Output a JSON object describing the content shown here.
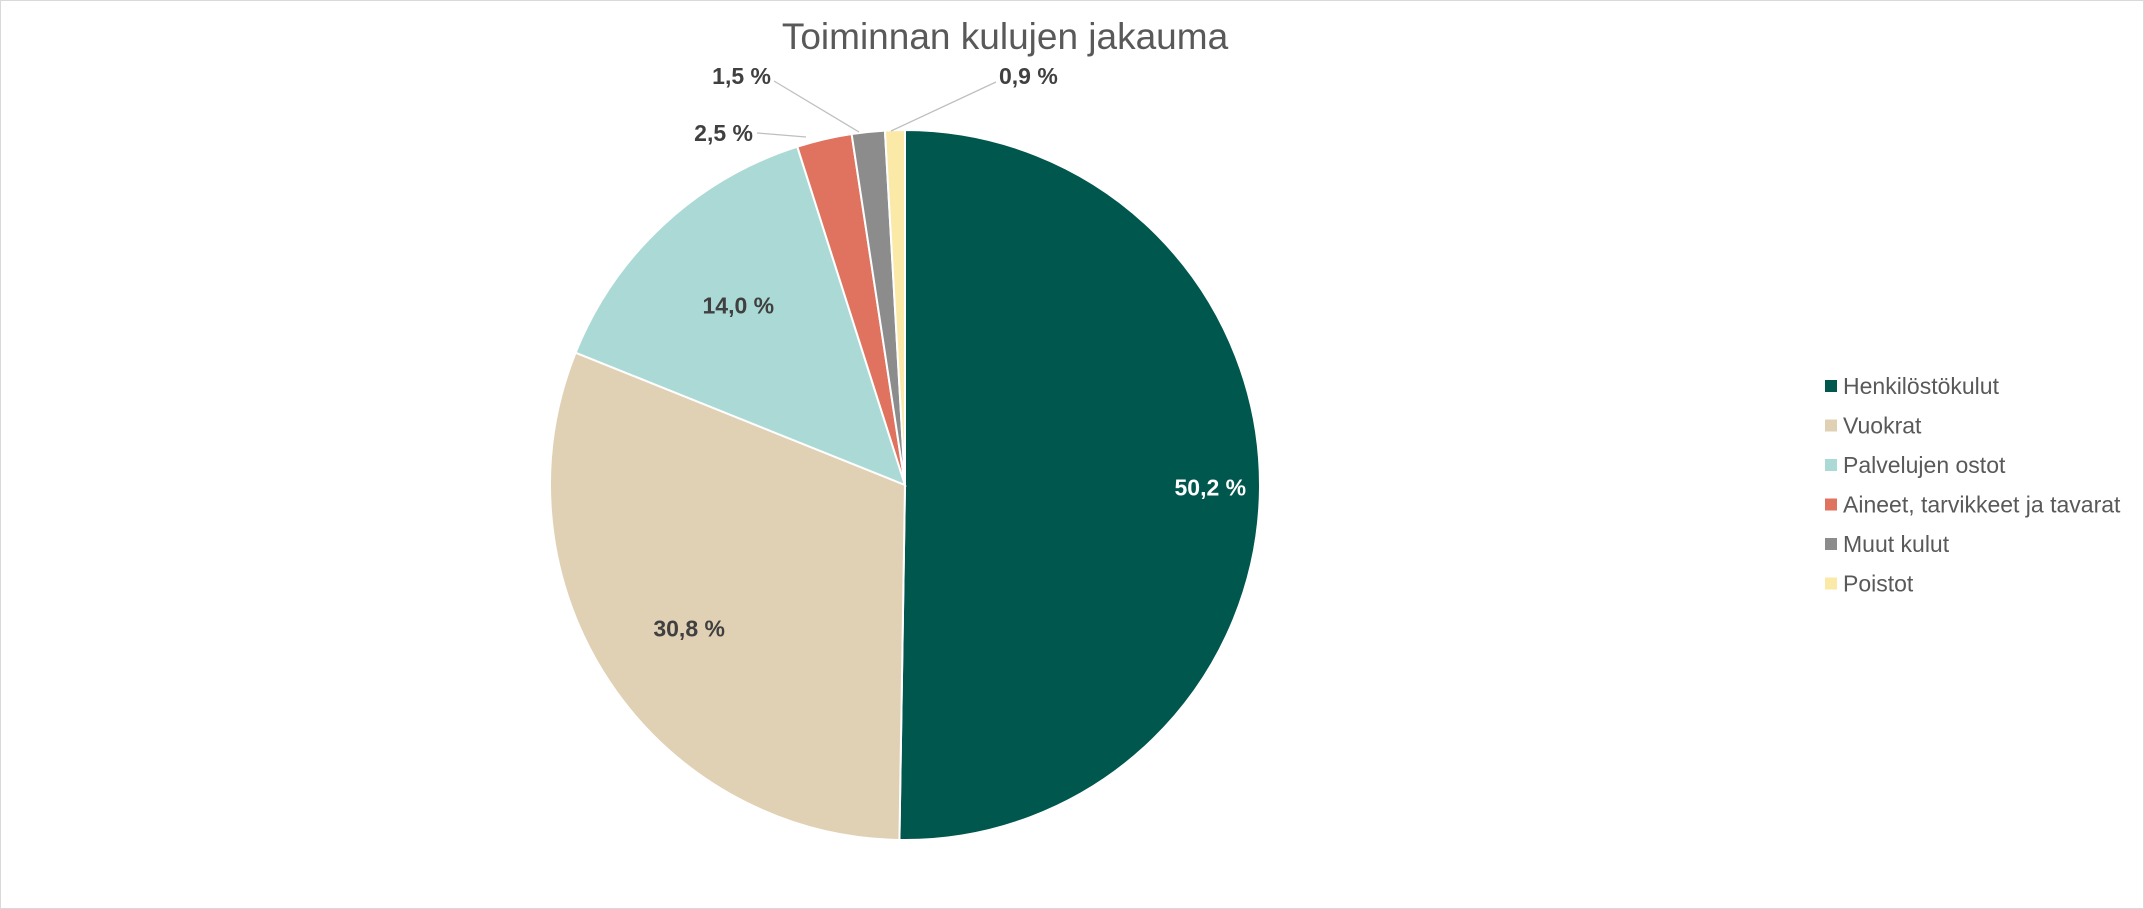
{
  "chart_data": {
    "type": "pie",
    "title": "Toiminnan kulujen jakauma",
    "legend_position": "right",
    "series": [
      {
        "name": "Henkilöstökulut",
        "value": 50.2,
        "label": "50,2 %",
        "color": "#00574D",
        "label_color": "#ffffff"
      },
      {
        "name": "Vuokrat",
        "value": 30.8,
        "label": "30,8 %",
        "color": "#E0D1B5",
        "label_color": "#404040"
      },
      {
        "name": "Palvelujen ostot",
        "value": 14.0,
        "label": "14,0 %",
        "color": "#ABDAD6",
        "label_color": "#404040"
      },
      {
        "name": "Aineet, tarvikkeet ja tavarat",
        "value": 2.5,
        "label": "2,5 %",
        "color": "#E0735F",
        "label_color": "#404040"
      },
      {
        "name": "Muut kulut",
        "value": 1.5,
        "label": "1,5 %",
        "color": "#8C8C8C",
        "label_color": "#404040"
      },
      {
        "name": "Poistot",
        "value": 0.9,
        "label": "0,9 %",
        "color": "#FBE9A8",
        "label_color": "#404040"
      }
    ]
  }
}
